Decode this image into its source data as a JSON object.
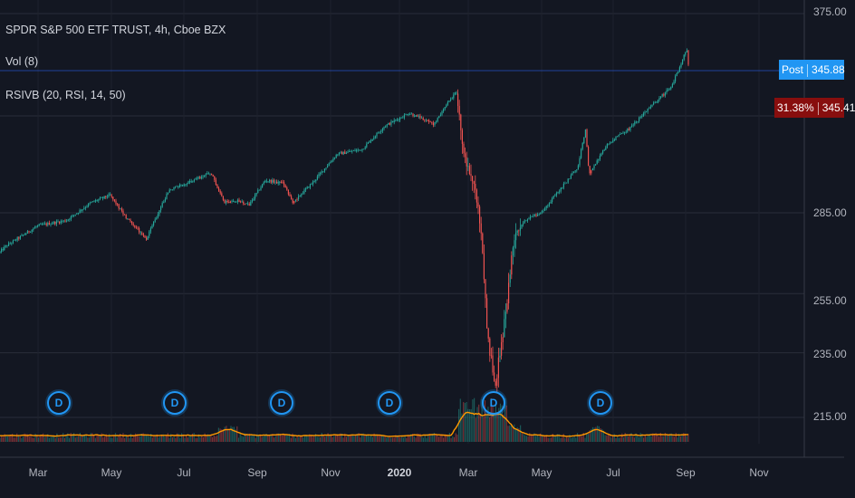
{
  "legend": {
    "title": "SPDR S&P 500 ETF TRUST, 4h, Cboe BZX",
    "vol": "Vol (8)",
    "rsivb": "RSIVB (20, RSI, 14, 50)"
  },
  "price_badges": {
    "post_label": "Post",
    "post_value": "345.88",
    "rsi_pct": "31.38%",
    "last_value": "345.41"
  },
  "y_axis_labels": [
    "375.00",
    "285.00",
    "255.00",
    "235.00",
    "215.00"
  ],
  "x_axis_labels": [
    "Mar",
    "May",
    "Jul",
    "Sep",
    "Nov",
    "2020",
    "Mar",
    "May",
    "Jul",
    "Sep",
    "Nov"
  ],
  "dividend_marker": "D",
  "colors": {
    "background": "#131722",
    "up_candle": "#26a69a",
    "down_candle": "#ef5350",
    "post_badge": "#2196f3",
    "last_badge": "#880e0e",
    "volume_ma": "#ff9800",
    "dividend": "#2196f3"
  },
  "chart_data": {
    "type": "candlestick",
    "symbol": "SPDR S&P 500 ETF TRUST",
    "interval": "4h",
    "exchange": "Cboe BZX",
    "scale": "log",
    "y_tick_labels": [
      375,
      285,
      255,
      235,
      215
    ],
    "x": [
      "2019-01-15",
      "2019-02-01",
      "2019-03-01",
      "2019-03-25",
      "2019-04-15",
      "2019-05-01",
      "2019-05-15",
      "2019-06-01",
      "2019-06-20",
      "2019-07-10",
      "2019-07-26",
      "2019-08-06",
      "2019-08-15",
      "2019-08-27",
      "2019-09-10",
      "2019-09-25",
      "2019-10-03",
      "2019-10-20",
      "2019-11-10",
      "2019-12-01",
      "2019-12-20",
      "2020-01-10",
      "2020-01-31",
      "2020-02-19",
      "2020-02-26",
      "2020-03-05",
      "2020-03-12",
      "2020-03-16",
      "2020-03-23",
      "2020-04-01",
      "2020-04-09",
      "2020-04-20",
      "2020-05-01",
      "2020-05-15",
      "2020-06-01",
      "2020-06-08",
      "2020-06-11",
      "2020-06-26",
      "2020-07-15",
      "2020-08-01",
      "2020-08-20",
      "2020-09-02",
      "2020-09-04"
    ],
    "close": [
      264,
      272,
      280,
      282,
      289,
      292,
      283,
      275,
      294,
      298,
      301,
      289,
      290,
      288,
      298,
      297,
      289,
      297,
      309,
      311,
      321,
      327,
      322,
      337,
      307,
      298,
      275,
      244,
      223,
      248,
      278,
      283,
      285,
      293,
      303,
      320,
      300,
      313,
      320,
      329,
      339,
      357,
      345
    ]
  }
}
